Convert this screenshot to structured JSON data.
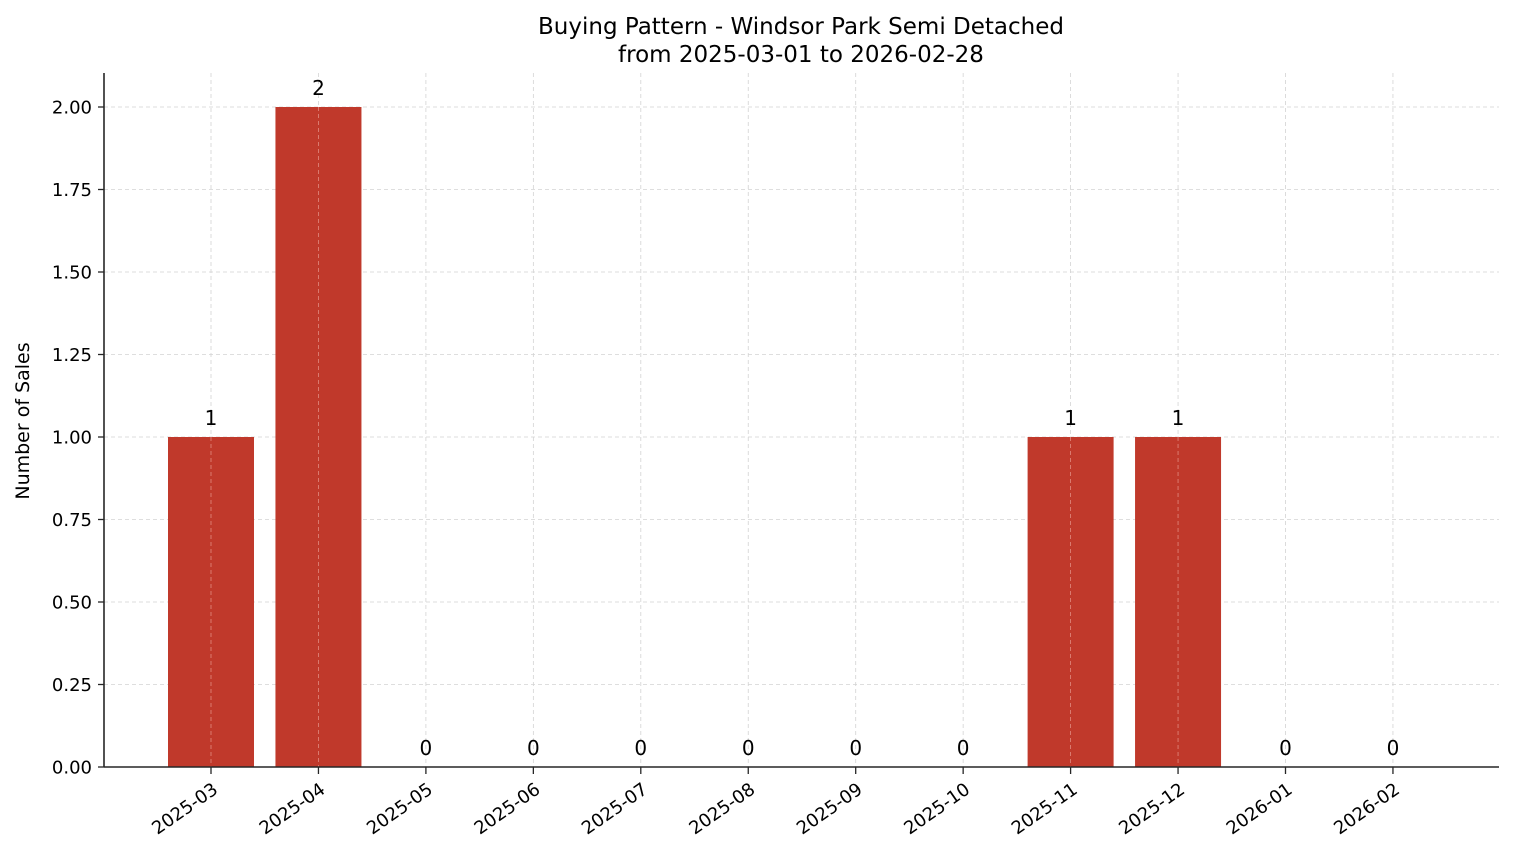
{
  "chart_data": {
    "type": "bar",
    "title": "Buying Pattern - Windsor Park Semi Detached",
    "subtitle": "from 2025-03-01 to 2026-02-28",
    "xlabel": "",
    "ylabel": "Number of Sales",
    "categories": [
      "2025-03",
      "2025-04",
      "2025-05",
      "2025-06",
      "2025-07",
      "2025-08",
      "2025-09",
      "2025-10",
      "2025-11",
      "2025-12",
      "2026-01",
      "2026-02"
    ],
    "values": [
      1,
      2,
      0,
      0,
      0,
      0,
      0,
      0,
      1,
      1,
      0,
      0
    ],
    "data_labels": [
      "1",
      "2",
      "0",
      "0",
      "0",
      "0",
      "0",
      "0",
      "1",
      "1",
      "0",
      "0"
    ],
    "ylim": [
      0,
      2.1
    ],
    "yticks": [
      "0.00",
      "0.25",
      "0.50",
      "0.75",
      "1.00",
      "1.25",
      "1.50",
      "1.75",
      "2.00"
    ],
    "grid": true,
    "legend": null,
    "bar_color": "#c0392b"
  }
}
